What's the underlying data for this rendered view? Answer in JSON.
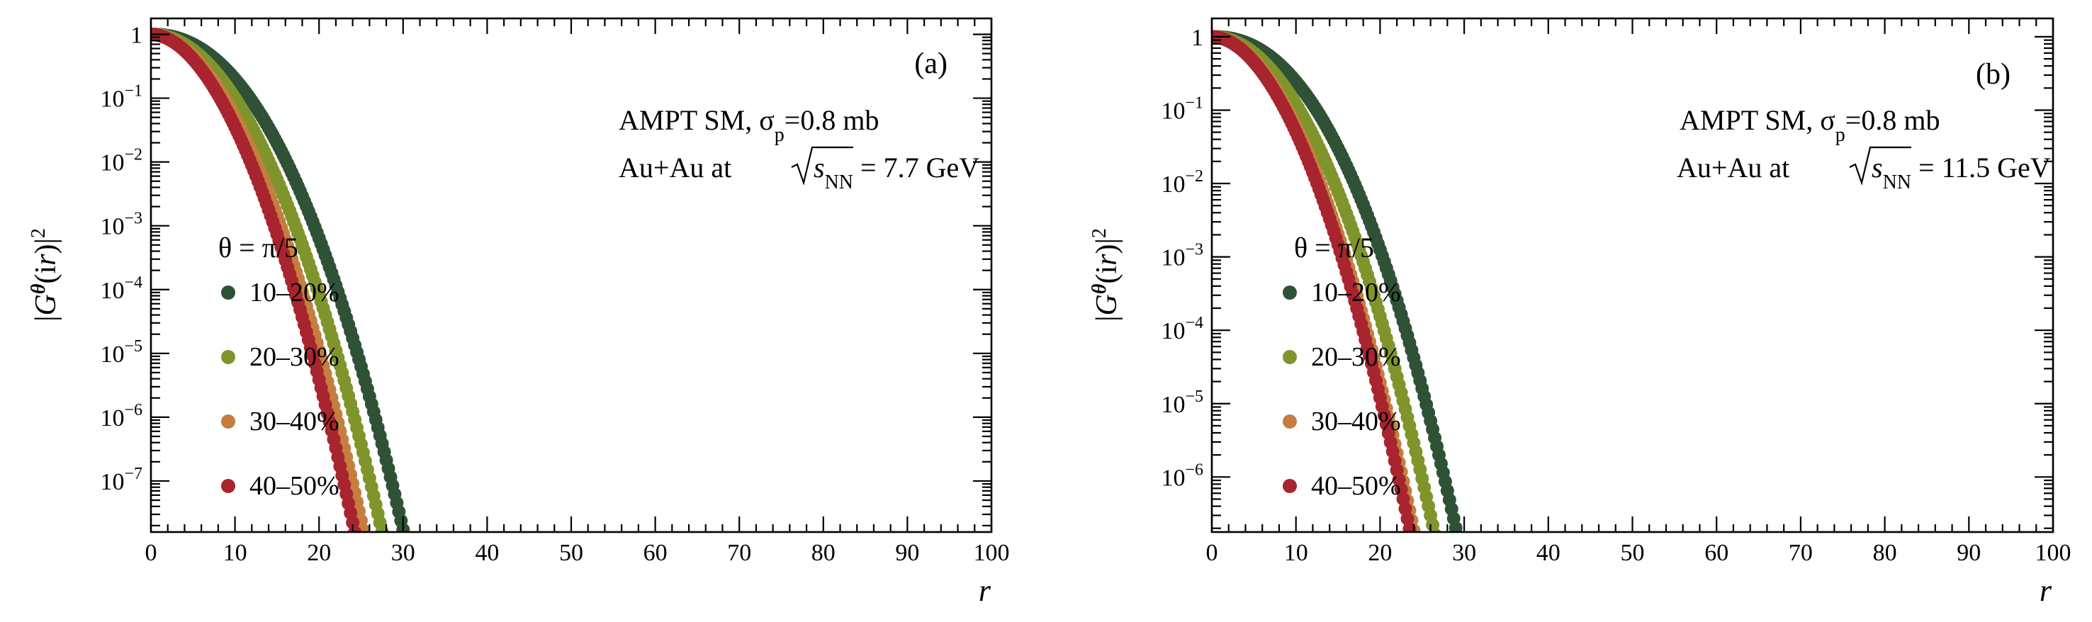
{
  "chart_data": [
    {
      "type": "scatter",
      "panel": "(a)",
      "xlabel": "r",
      "ylabel": "|G^θ(ir)|^2",
      "xlim": [
        0,
        100
      ],
      "ylim_log10": [
        -7.8,
        0.25
      ],
      "y_tick_exponents": [
        0,
        -1,
        -2,
        -3,
        -4,
        -5,
        -6,
        -7
      ],
      "x_ticks": [
        0,
        10,
        20,
        30,
        40,
        50,
        60,
        70,
        80,
        90,
        100
      ],
      "model_text": "AMPT SM, σ",
      "model_sub": "p",
      "model_value": "=0.8 mb",
      "system_prefix": "Au+Au at ",
      "system_sqrt": "s",
      "system_sub": "NN",
      "system_energy": " = 7.7 GeV",
      "legend_title": "θ = π/5",
      "series": [
        {
          "name": "10–20%",
          "color": "#2f5236",
          "r0": 73.5,
          "rmax": 79,
          "a": 0.7,
          "p": 2.19,
          "floor": -7.55
        },
        {
          "name": "20–30%",
          "color": "#7f952c",
          "r0": 51.0,
          "rmax": 55,
          "a": 1.0,
          "p": 2.03,
          "floor": -7.0
        },
        {
          "name": "30–40%",
          "color": "#c47f3e",
          "r0": 44.3,
          "rmax": 49,
          "a": 1.3,
          "p": 1.93,
          "floor": -7.6
        },
        {
          "name": "40–50%",
          "color": "#a8242e",
          "r0": 43.3,
          "rmax": 46,
          "a": 1.45,
          "p": 1.9,
          "floor": -6.55
        }
      ]
    },
    {
      "type": "scatter",
      "panel": "(b)",
      "xlabel": "r",
      "ylabel": "|G^θ(ir)|^2",
      "xlim": [
        0,
        100
      ],
      "ylim_log10": [
        -6.75,
        0.25
      ],
      "y_tick_exponents": [
        0,
        -1,
        -2,
        -3,
        -4,
        -5,
        -6
      ],
      "x_ticks": [
        0,
        10,
        20,
        30,
        40,
        50,
        60,
        70,
        80,
        90,
        100
      ],
      "model_text": "AMPT SM, σ",
      "model_sub": "p",
      "model_value": "=0.8 mb",
      "system_prefix": "Au+Au at ",
      "system_sqrt": "s",
      "system_sub": "NN",
      "system_energy": " = 11.5 GeV",
      "legend_title": "θ = π/5",
      "series": [
        {
          "name": "10–20%",
          "color": "#2f5236",
          "r0": 73.0,
          "rmax": 79,
          "a": 0.61,
          "p": 2.25,
          "floor": -6.45
        },
        {
          "name": "20–30%",
          "color": "#7f952c",
          "r0": 52.2,
          "rmax": 55,
          "a": 0.92,
          "p": 2.05,
          "floor": -6.75
        },
        {
          "name": "30–40%",
          "color": "#c47f3e",
          "r0": 44.3,
          "rmax": 49,
          "a": 1.22,
          "p": 1.95,
          "floor": -6.8
        },
        {
          "name": "40–50%",
          "color": "#a8242e",
          "r0": 43.5,
          "rmax": 46,
          "a": 1.3,
          "p": 1.92,
          "floor": -6.8
        }
      ]
    }
  ]
}
